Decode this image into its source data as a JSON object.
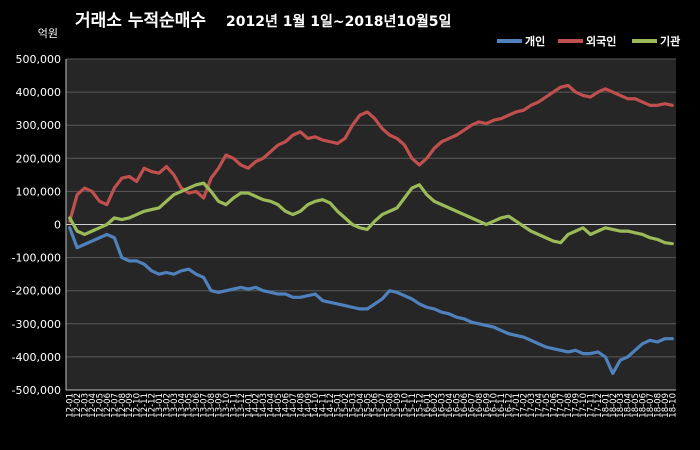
{
  "chart_data": {
    "type": "line",
    "title": "거래소  누적순매수",
    "subtitle": "2012년 1월 1일~2018년10월5일",
    "ylabel": "억원",
    "xlabel": "",
    "ylim": [
      -500000,
      500000
    ],
    "yticks": [
      500000,
      400000,
      300000,
      200000,
      100000,
      0,
      -100000,
      -200000,
      -300000,
      -400000,
      -500000
    ],
    "ytick_labels": [
      "500,000",
      "400,000",
      "300,000",
      "200,000",
      "100,000",
      "0",
      "-100,000",
      "-200,000",
      "-300,000",
      "-400,000",
      "-500,000"
    ],
    "grid": true,
    "legend": "top-right",
    "background": "#000000",
    "plot_background": "#262626",
    "x": [
      "12-01",
      "12-02",
      "12-03",
      "12-04",
      "12-05",
      "12-06",
      "12-07",
      "12-08",
      "12-09",
      "12-10",
      "12-11",
      "12-12",
      "13-01",
      "13-02",
      "13-03",
      "13-04",
      "13-05",
      "13-06",
      "13-07",
      "13-08",
      "13-09",
      "13-10",
      "13-11",
      "13-12",
      "14-01",
      "14-02",
      "14-03",
      "14-04",
      "14-05",
      "14-06",
      "14-07",
      "14-08",
      "14-09",
      "14-10",
      "14-11",
      "14-12",
      "15-01",
      "15-02",
      "15-03",
      "15-04",
      "15-05",
      "15-06",
      "15-07",
      "15-08",
      "15-09",
      "15-10",
      "15-11",
      "15-12",
      "16-01",
      "16-02",
      "16-03",
      "16-04",
      "16-05",
      "16-06",
      "16-07",
      "16-08",
      "16-09",
      "16-10",
      "16-11",
      "16-12",
      "17-01",
      "17-02",
      "17-03",
      "17-04",
      "17-05",
      "17-06",
      "17-07",
      "17-08",
      "17-09",
      "17-10",
      "17-11",
      "17-12",
      "18-01",
      "18-02",
      "18-03",
      "18-04",
      "18-05",
      "18-06",
      "18-07",
      "18-08",
      "18-09",
      "18-10"
    ],
    "series": [
      {
        "name": "개인",
        "color": "#4f81bd",
        "values": [
          -10000,
          -70000,
          -60000,
          -50000,
          -40000,
          -30000,
          -40000,
          -100000,
          -110000,
          -110000,
          -120000,
          -140000,
          -150000,
          -145000,
          -150000,
          -140000,
          -135000,
          -150000,
          -160000,
          -200000,
          -205000,
          -200000,
          -195000,
          -190000,
          -195000,
          -190000,
          -200000,
          -205000,
          -210000,
          -210000,
          -220000,
          -220000,
          -215000,
          -210000,
          -230000,
          -235000,
          -240000,
          -245000,
          -250000,
          -255000,
          -255000,
          -240000,
          -225000,
          -200000,
          -205000,
          -215000,
          -225000,
          -240000,
          -250000,
          -255000,
          -265000,
          -270000,
          -280000,
          -285000,
          -295000,
          -300000,
          -305000,
          -310000,
          -320000,
          -330000,
          -335000,
          -340000,
          -350000,
          -360000,
          -370000,
          -375000,
          -380000,
          -385000,
          -380000,
          -390000,
          -390000,
          -385000,
          -400000,
          -450000,
          -410000,
          -400000,
          -380000,
          -360000,
          -350000,
          -355000,
          -345000,
          -345000
        ]
      },
      {
        "name": "외국인",
        "color": "#c0504d",
        "values": [
          10000,
          90000,
          110000,
          100000,
          70000,
          60000,
          110000,
          140000,
          145000,
          130000,
          170000,
          160000,
          155000,
          175000,
          150000,
          110000,
          95000,
          100000,
          80000,
          140000,
          170000,
          210000,
          200000,
          180000,
          170000,
          190000,
          200000,
          220000,
          240000,
          250000,
          270000,
          280000,
          260000,
          265000,
          255000,
          250000,
          245000,
          260000,
          300000,
          330000,
          340000,
          320000,
          290000,
          270000,
          260000,
          240000,
          200000,
          180000,
          200000,
          230000,
          250000,
          260000,
          270000,
          285000,
          300000,
          310000,
          305000,
          315000,
          320000,
          330000,
          340000,
          345000,
          360000,
          370000,
          385000,
          400000,
          415000,
          420000,
          400000,
          390000,
          385000,
          400000,
          410000,
          400000,
          390000,
          380000,
          380000,
          370000,
          360000,
          360000,
          365000,
          360000
        ]
      },
      {
        "name": "기관",
        "color": "#9bbb59",
        "values": [
          20000,
          -20000,
          -30000,
          -20000,
          -10000,
          0,
          20000,
          15000,
          20000,
          30000,
          40000,
          45000,
          50000,
          70000,
          90000,
          100000,
          110000,
          120000,
          125000,
          100000,
          70000,
          60000,
          80000,
          95000,
          95000,
          85000,
          75000,
          70000,
          60000,
          40000,
          30000,
          40000,
          60000,
          70000,
          75000,
          65000,
          40000,
          20000,
          0,
          -10000,
          -15000,
          10000,
          30000,
          40000,
          50000,
          80000,
          110000,
          120000,
          90000,
          70000,
          60000,
          50000,
          40000,
          30000,
          20000,
          10000,
          0,
          10000,
          20000,
          25000,
          10000,
          -5000,
          -20000,
          -30000,
          -40000,
          -50000,
          -55000,
          -30000,
          -20000,
          -10000,
          -30000,
          -20000,
          -10000,
          -15000,
          -20000,
          -20000,
          -25000,
          -30000,
          -40000,
          -45000,
          -55000,
          -58000
        ]
      }
    ]
  }
}
